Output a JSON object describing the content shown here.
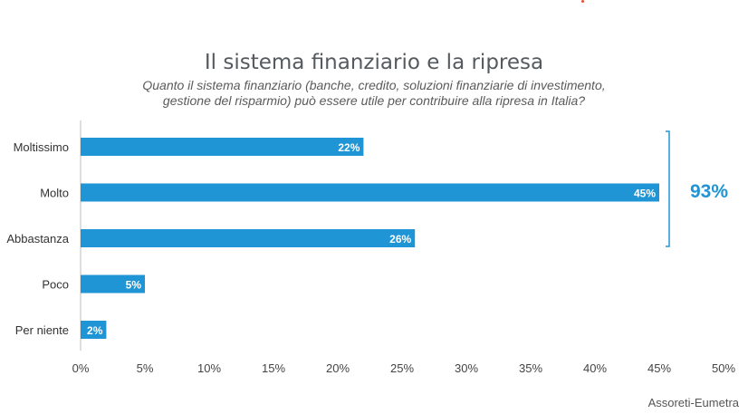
{
  "chart_data": {
    "type": "bar",
    "orientation": "horizontal",
    "title": "Il sistema finanziario e la ripresa",
    "subtitle_lines": [
      "Quanto il sistema finanziario (banche, credito, soluzioni finanziarie di investimento,",
      "gestione del risparmio) può essere utile per contribuire alla ripresa in Italia?"
    ],
    "categories": [
      "Moltissimo",
      "Molto",
      "Abbastanza",
      "Poco",
      "Per niente"
    ],
    "values": [
      22,
      45,
      26,
      5,
      2
    ],
    "value_labels": [
      "22%",
      "45%",
      "26%",
      "5%",
      "2%"
    ],
    "xlim": [
      0,
      50
    ],
    "xticks": [
      "0%",
      "5%",
      "10%",
      "15%",
      "20%",
      "25%",
      "30%",
      "35%",
      "40%",
      "45%",
      "50%"
    ],
    "grid": false,
    "bar_color": "#1f95d6",
    "bracket": {
      "label": "93%",
      "covers": [
        "Moltissimo",
        "Molto",
        "Abbastanza"
      ],
      "color": "#1f95d6"
    },
    "source": "Assoreti-Eumetra"
  }
}
